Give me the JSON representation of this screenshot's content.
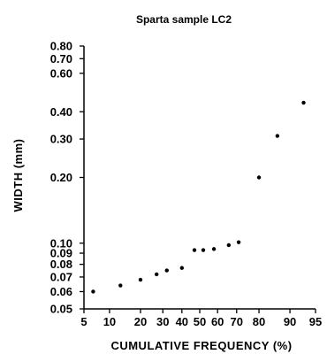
{
  "chart_data": {
    "type": "scatter",
    "title": "Sparta sample LC2",
    "xlabel": "CUMULATIVE FREQUENCY (%)",
    "ylabel": "WIDTH (mm)",
    "x_scale": "probability",
    "y_scale": "log",
    "xlim": [
      5,
      95
    ],
    "ylim": [
      0.05,
      0.8
    ],
    "x_ticks": [
      5,
      10,
      20,
      30,
      40,
      50,
      60,
      70,
      80,
      90,
      95
    ],
    "x_tick_labels": [
      "5",
      "10",
      "20",
      "30",
      "40",
      "50",
      "60",
      "70",
      "80",
      "90",
      "95"
    ],
    "y_ticks": [
      0.05,
      0.06,
      0.07,
      0.08,
      0.09,
      0.1,
      0.2,
      0.3,
      0.4,
      0.6,
      0.7,
      0.8
    ],
    "y_tick_labels": [
      "0.05",
      "0.06",
      "0.07",
      "0.08",
      "0.09",
      "0.10",
      "0.20",
      "0.30",
      "0.40",
      "0.60",
      "0.70",
      "0.80"
    ],
    "grid": false,
    "points": [
      {
        "x": 6.5,
        "y": 0.06
      },
      {
        "x": 13,
        "y": 0.064
      },
      {
        "x": 20,
        "y": 0.068
      },
      {
        "x": 27,
        "y": 0.072
      },
      {
        "x": 32,
        "y": 0.075
      },
      {
        "x": 40,
        "y": 0.077
      },
      {
        "x": 47,
        "y": 0.093
      },
      {
        "x": 52,
        "y": 0.093
      },
      {
        "x": 58,
        "y": 0.094
      },
      {
        "x": 66,
        "y": 0.098
      },
      {
        "x": 71,
        "y": 0.101
      },
      {
        "x": 80,
        "y": 0.2
      },
      {
        "x": 86.5,
        "y": 0.31
      },
      {
        "x": 93,
        "y": 0.44
      }
    ]
  }
}
